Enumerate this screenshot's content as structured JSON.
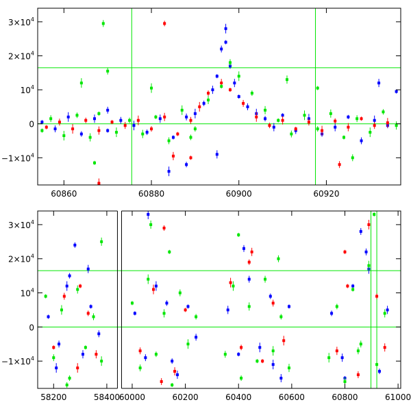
{
  "chart_data": [
    {
      "type": "scatter",
      "name": "top-panel",
      "xlim": [
        60854,
        60937
      ],
      "ylim": [
        -18000,
        34000
      ],
      "x_ticks": [
        60860,
        60880,
        60900,
        60920
      ],
      "x_tick_labels": [
        "60860",
        "60880",
        "60900",
        "60920"
      ],
      "y_ticks": [
        -10000,
        0,
        10000,
        20000,
        30000
      ],
      "y_tick_labels": [
        {
          "mant": "−1×10",
          "exp": "4"
        },
        {
          "mant": "0",
          "exp": ""
        },
        {
          "mant": "10",
          "exp": "4"
        },
        {
          "mant": "2×10",
          "exp": "4"
        },
        {
          "mant": "3×10",
          "exp": "4"
        }
      ],
      "vertical_lines": [
        60875.5,
        60917.5
      ],
      "horizontal_lines": [
        0,
        16500
      ],
      "grid": false,
      "series": [
        {
          "color": "#0000ff",
          "x": [
            60855,
            60858,
            60861,
            60864,
            60867,
            60870,
            60873,
            60876,
            60879,
            60882,
            60885,
            60888,
            60890,
            60892,
            60894,
            60895,
            60896,
            60897,
            60898,
            60899,
            60900,
            60902,
            60904,
            60906,
            60908,
            60910,
            60913,
            60916,
            60919,
            60922,
            60925,
            60928,
            60931,
            60934,
            60932,
            60936,
            60870,
            60884,
            60888,
            60895,
            60897
          ],
          "y": [
            500,
            -1500,
            2000,
            -3000,
            1500,
            -2000,
            1000,
            -500,
            -2500,
            1500,
            -4000,
            2000,
            3000,
            6000,
            10000,
            14000,
            22000,
            28000,
            17000,
            12000,
            8000,
            5000,
            3000,
            1500,
            -1000,
            2500,
            -2000,
            1500,
            -3000,
            -1000,
            2000,
            -5000,
            1000,
            -500,
            12000,
            9500,
            4000,
            -14000,
            -12000,
            -9000,
            24000
          ]
        },
        {
          "color": "#ff0000",
          "x": [
            60856,
            60859,
            60862,
            60865,
            60868,
            60871,
            60874,
            60877,
            60880,
            60883,
            60886,
            60889,
            60891,
            60893,
            60896,
            60898,
            60901,
            60904,
            60907,
            60910,
            60913,
            60916,
            60919,
            60922,
            60925,
            60928,
            60931,
            60934,
            60883,
            60885,
            60889,
            60923,
            60868
          ],
          "y": [
            -1000,
            500,
            -1500,
            1000,
            -2000,
            500,
            -500,
            1000,
            -1500,
            2000,
            -3000,
            1000,
            5000,
            9000,
            12000,
            10000,
            6000,
            2000,
            -500,
            1000,
            -1500,
            500,
            -2000,
            800,
            -1000,
            1500,
            -500,
            300,
            29500,
            -9500,
            -10000,
            -12000,
            -17500
          ]
        },
        {
          "color": "#00e600",
          "x": [
            60855,
            60857,
            60860,
            60863,
            60866,
            60868,
            60869,
            60872,
            60875,
            60878,
            60881,
            60884,
            60887,
            60890,
            60893,
            60896,
            60898,
            60900,
            60903,
            60906,
            60909,
            60912,
            60915,
            60918,
            60921,
            60924,
            60927,
            60930,
            60933,
            60936,
            60867,
            60870,
            60880,
            60889,
            60911,
            60918,
            60926,
            60864
          ],
          "y": [
            -2000,
            1500,
            -3500,
            2500,
            -4000,
            3000,
            29500,
            -2500,
            1000,
            -3000,
            2000,
            -5000,
            4000,
            -1500,
            7000,
            11000,
            18000,
            14000,
            9000,
            4000,
            1000,
            -3000,
            2500,
            -1500,
            3000,
            -4000,
            1500,
            -2500,
            3500,
            -500,
            -11500,
            15500,
            10500,
            -4000,
            13000,
            10500,
            -10000,
            12000
          ]
        }
      ]
    },
    {
      "type": "scatter",
      "name": "bottom-panel",
      "xlim": [
        58140,
        61010
      ],
      "ylim": [
        -18000,
        34000
      ],
      "x_ticks": [
        58200,
        58400,
        60000,
        60200,
        60400,
        60600,
        60800,
        61000
      ],
      "x_tick_labels": [
        "58200",
        "58400",
        "60000",
        "60200",
        "60400",
        "60600",
        "60800",
        "61000"
      ],
      "y_ticks": [
        -10000,
        0,
        10000,
        20000,
        30000
      ],
      "y_tick_labels": [
        {
          "mant": "−1×10",
          "exp": "4"
        },
        {
          "mant": "0",
          "exp": ""
        },
        {
          "mant": "10",
          "exp": "4"
        },
        {
          "mant": "2×10",
          "exp": "4"
        },
        {
          "mant": "3×10",
          "exp": "4"
        }
      ],
      "axis_break": [
        58440,
        59960
      ],
      "vertical_lines": [
        60898,
        60920
      ],
      "horizontal_lines": [
        0,
        16500
      ],
      "grid": false,
      "series": [
        {
          "color": "#0000ff",
          "x": [
            58180,
            58220,
            58250,
            58280,
            58310,
            58340,
            58370,
            58210,
            58260,
            58330,
            60010,
            60050,
            60090,
            60130,
            60170,
            60210,
            60240,
            60060,
            60150,
            60360,
            60400,
            60440,
            60480,
            60520,
            60560,
            60590,
            60420,
            60530,
            60750,
            60790,
            60830,
            60860,
            60890,
            60930,
            60960,
            60800,
            60880
          ],
          "y": [
            3000,
            -5000,
            12000,
            24000,
            -8000,
            6000,
            -2000,
            -12000,
            15000,
            17000,
            4000,
            -9000,
            12000,
            7000,
            -14000,
            6000,
            -3000,
            33000,
            -10000,
            5000,
            -8000,
            14000,
            -6000,
            9000,
            -15000,
            6000,
            23000,
            -11000,
            4000,
            -9000,
            12000,
            28000,
            17000,
            -13000,
            5000,
            -15000,
            22000
          ]
        },
        {
          "color": "#ff0000",
          "x": [
            58200,
            58240,
            58290,
            58330,
            58360,
            58300,
            60030,
            60080,
            60120,
            60160,
            60200,
            60110,
            60370,
            60410,
            60450,
            60490,
            60530,
            60570,
            60440,
            60770,
            60810,
            60850,
            60890,
            60920,
            60950,
            60800
          ],
          "y": [
            -6000,
            9000,
            -12000,
            4000,
            -8000,
            12000,
            -7000,
            11000,
            29000,
            -13000,
            5000,
            -16000,
            13000,
            -6000,
            22000,
            -10000,
            7000,
            -4000,
            19000,
            -7000,
            12000,
            -14000,
            30000,
            9000,
            -6000,
            22000
          ]
        },
        {
          "color": "#00e600",
          "x": [
            58170,
            58200,
            58230,
            58260,
            58290,
            58320,
            58350,
            58380,
            58250,
            58380,
            60000,
            60030,
            60060,
            60090,
            60120,
            60150,
            60180,
            60210,
            60240,
            60070,
            60140,
            60350,
            60380,
            60410,
            60440,
            60470,
            60500,
            60530,
            60560,
            60590,
            60400,
            60550,
            60740,
            60770,
            60800,
            60830,
            60860,
            60890,
            60920,
            60950,
            60910,
            60850
          ],
          "y": [
            9000,
            -9000,
            5000,
            -15000,
            11000,
            -6000,
            3000,
            -10000,
            -17000,
            25000,
            7000,
            -12000,
            14000,
            -8000,
            4000,
            -17000,
            10000,
            -5000,
            3000,
            30000,
            22000,
            -8000,
            12000,
            -15000,
            6000,
            -10000,
            14000,
            -7000,
            3000,
            -12000,
            27000,
            20000,
            -9000,
            6000,
            -16000,
            11000,
            -5000,
            18000,
            -11000,
            4000,
            33000,
            -7000
          ]
        }
      ]
    }
  ]
}
